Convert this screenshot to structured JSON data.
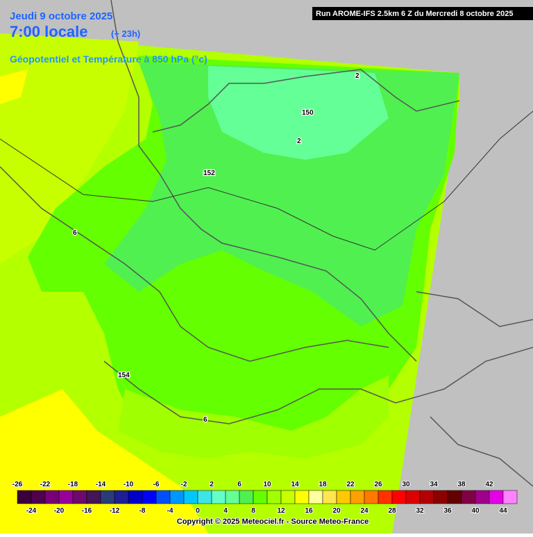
{
  "header": {
    "date": "Jeudi 9 octobre 2025",
    "time": "7:00 locale",
    "lead": "(+ 23h)",
    "subtitle": "Géopotentiel et Température à 850 hPa (°c)",
    "run": "Run AROME-IFS 2.5km 6 Z du Mercredi 8 octobre 2025"
  },
  "map": {
    "contour_labels": [
      "2",
      "150",
      "2",
      "152",
      "6",
      "154",
      "6"
    ]
  },
  "colorbar": {
    "colors": [
      "#3c003c",
      "#500050",
      "#780078",
      "#96009b",
      "#6e0a6e",
      "#46145a",
      "#283c78",
      "#1e1e96",
      "#0000c8",
      "#0000ff",
      "#0050ff",
      "#0096ff",
      "#00c8ff",
      "#3ce6e6",
      "#64ffc8",
      "#64ff96",
      "#50f050",
      "#64ff00",
      "#a0ff00",
      "#c8ff00",
      "#ffff00",
      "#ffffa0",
      "#ffe650",
      "#ffc800",
      "#ffa000",
      "#ff7800",
      "#ff3200",
      "#ff0000",
      "#dc0000",
      "#b40000",
      "#8c0000",
      "#640000",
      "#820046",
      "#a0008c",
      "#e600e6",
      "#ff82ff"
    ],
    "labels_top": [
      -26,
      -22,
      -18,
      -14,
      -10,
      -6,
      -2,
      2,
      6,
      10,
      14,
      18,
      22,
      26,
      30,
      34,
      38,
      42
    ],
    "labels_bottom": [
      -24,
      -20,
      -16,
      -12,
      -8,
      -4,
      0,
      4,
      8,
      12,
      16,
      20,
      24,
      28,
      32,
      36,
      40,
      44
    ]
  },
  "footer": {
    "copyright": "Copyright © 2025 Meteociel.fr - Source Meteo-France"
  }
}
